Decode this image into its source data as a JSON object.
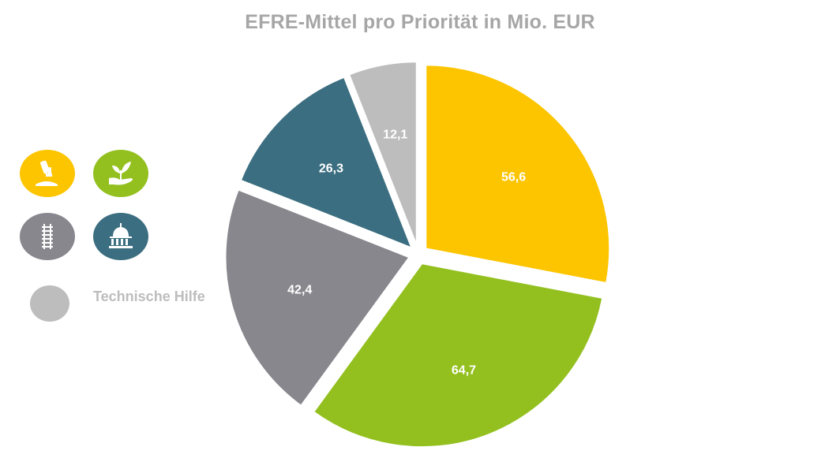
{
  "colors": {
    "yellow": "#fcc500",
    "green": "#93c01f",
    "gray": "#87878d",
    "teal": "#3b6e80",
    "lightgray": "#bdbdbd"
  },
  "legend": [
    {
      "icon": "microscope-icon",
      "color": "#fcc500",
      "label": ""
    },
    {
      "icon": "plant-in-hand-icon",
      "color": "#93c01f",
      "label": ""
    },
    {
      "icon": "railway-track-icon",
      "color": "#87878d",
      "label": ""
    },
    {
      "icon": "domed-building-icon",
      "color": "#3b6e80",
      "label": ""
    },
    {
      "icon": "",
      "color": "#bdbdbd",
      "label": "Technische Hilfe"
    }
  ],
  "chart_data": {
    "type": "pie",
    "title": "EFRE-Mittel pro Priorität in Mio. EUR",
    "start_angle_deg": 0,
    "direction": "clockwise",
    "exploded": true,
    "slices": [
      {
        "label": "56,6",
        "value": 56.6,
        "color": "#fcc500"
      },
      {
        "label": "64,7",
        "value": 64.7,
        "color": "#93c01f"
      },
      {
        "label": "42,4",
        "value": 42.4,
        "color": "#87878d"
      },
      {
        "label": "26,3",
        "value": 26.3,
        "color": "#3b6e80"
      },
      {
        "label": "12,1",
        "value": 12.1,
        "color": "#bdbdbd",
        "legend_label": "Technische Hilfe"
      }
    ]
  }
}
